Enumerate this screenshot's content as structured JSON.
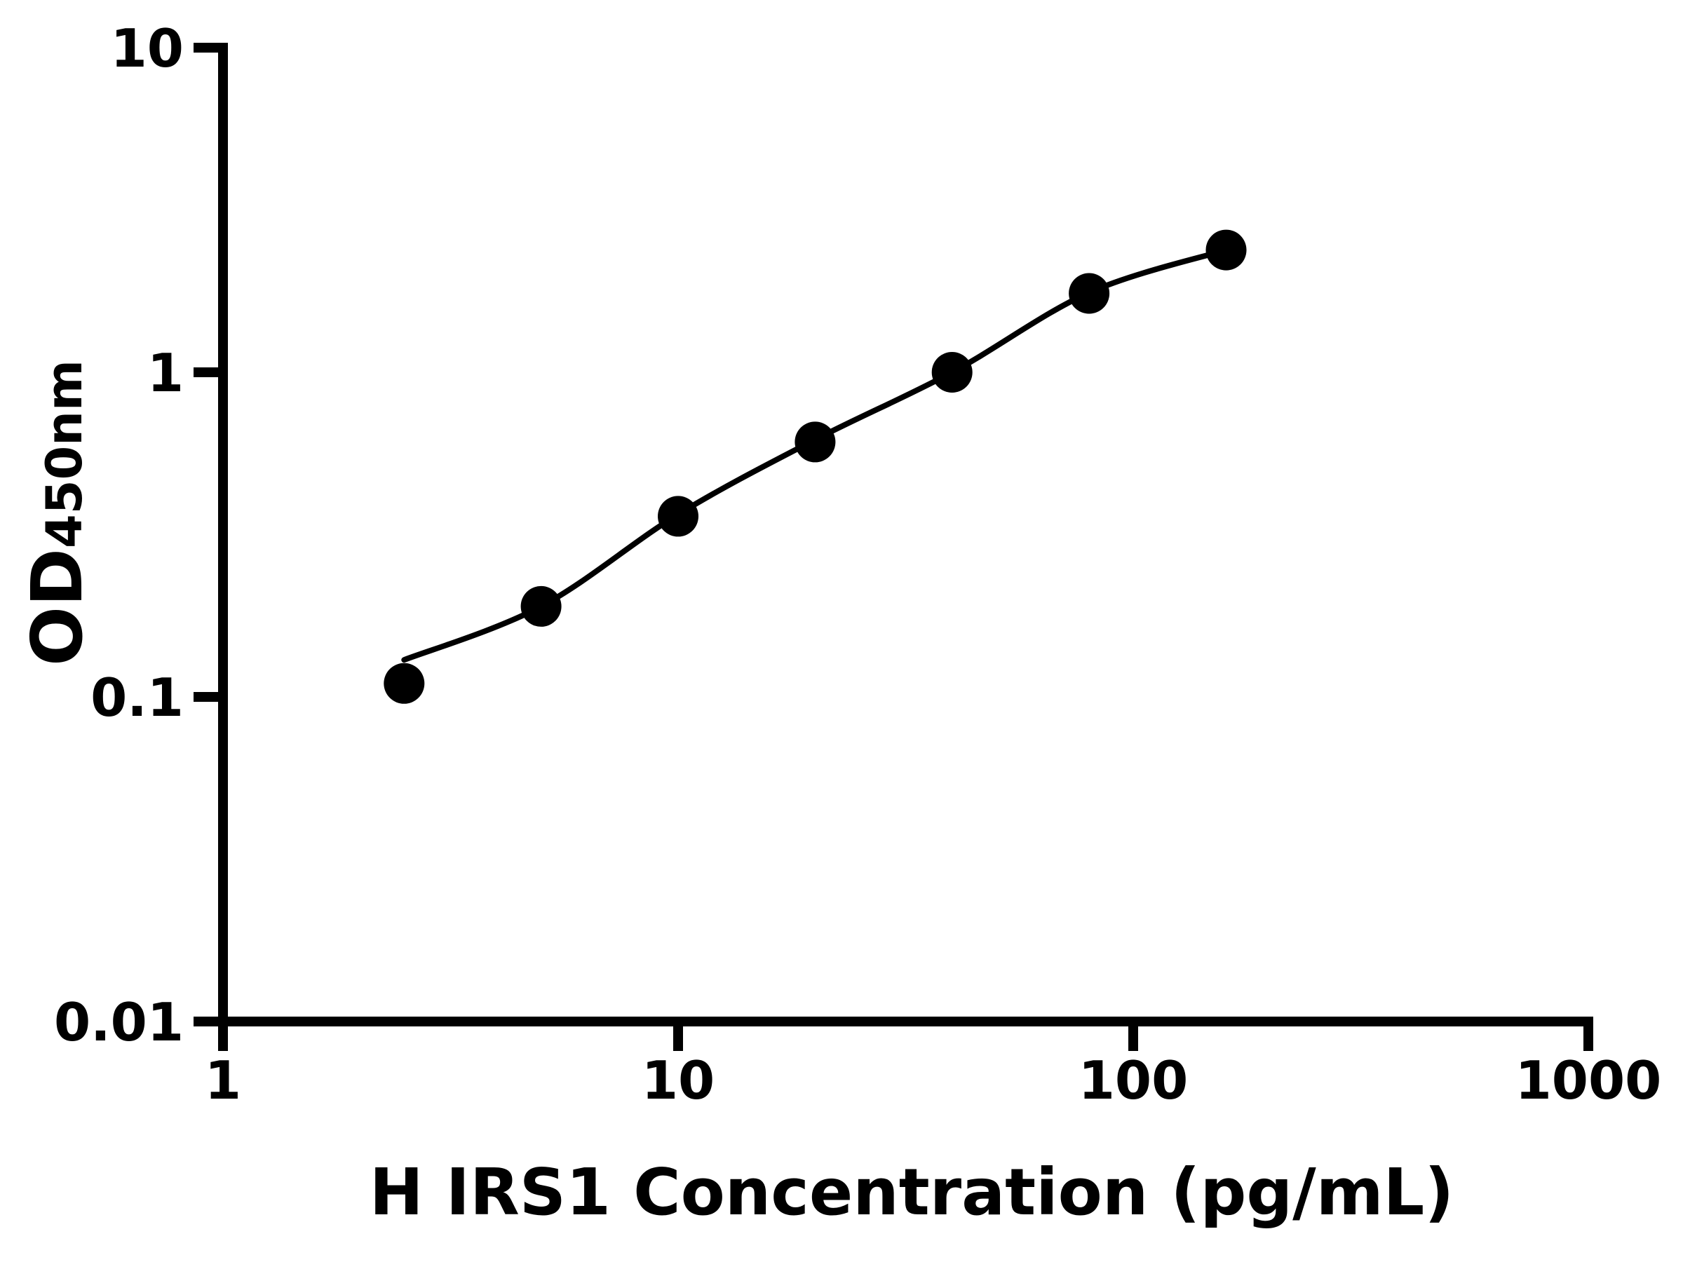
{
  "chart_data": {
    "type": "scatter",
    "title": "",
    "xlabel": "H IRS1 Concentration (pg/mL)",
    "ylabel_main": "OD",
    "ylabel_sub": "450nm",
    "x_log_scale": true,
    "y_log_scale": true,
    "xlim": [
      1,
      1000
    ],
    "ylim": [
      0.01,
      10
    ],
    "grid": false,
    "legend": null,
    "x": [
      2.5,
      5,
      10,
      20,
      40,
      80,
      160
    ],
    "y": [
      0.11,
      0.19,
      0.36,
      0.61,
      1.0,
      1.75,
      2.38
    ],
    "fit_y": [
      0.13,
      0.19,
      0.365,
      0.62,
      1.0,
      1.76,
      2.38
    ],
    "x_ticks": [
      {
        "value": 1,
        "label": "1"
      },
      {
        "value": 10,
        "label": "10"
      },
      {
        "value": 100,
        "label": "100"
      },
      {
        "value": 1000,
        "label": "1000"
      }
    ],
    "y_ticks": [
      {
        "value": 10,
        "label": "10"
      },
      {
        "value": 1,
        "label": "1"
      },
      {
        "value": 0.1,
        "label": "0.1"
      },
      {
        "value": 0.01,
        "label": "0.01"
      }
    ],
    "colors": {
      "axis": "#000000",
      "marker": "#000000",
      "curve": "#000000",
      "background": "#ffffff"
    }
  }
}
